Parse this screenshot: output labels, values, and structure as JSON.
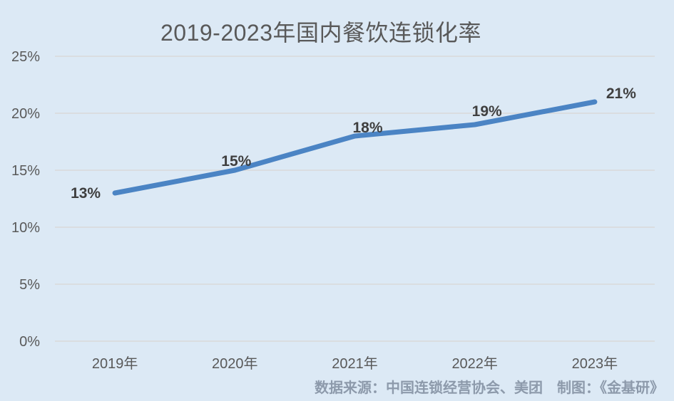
{
  "chart_data": {
    "type": "line",
    "title": "2019-2023年国内餐饮连锁化率",
    "categories": [
      "2019年",
      "2020年",
      "2021年",
      "2022年",
      "2023年"
    ],
    "values": [
      13,
      15,
      18,
      19,
      21
    ],
    "data_labels": [
      "13%",
      "15%",
      "18%",
      "19%",
      "21%"
    ],
    "y_ticks": [
      {
        "value": 0,
        "label": "0%"
      },
      {
        "value": 5,
        "label": "5%"
      },
      {
        "value": 10,
        "label": "10%"
      },
      {
        "value": 15,
        "label": "15%"
      },
      {
        "value": 20,
        "label": "20%"
      },
      {
        "value": 25,
        "label": "25%"
      }
    ],
    "ylim": [
      0,
      25
    ],
    "xlabel": "",
    "ylabel": "",
    "grid": true,
    "legend": "none",
    "colors": {
      "background": "#dce9f5",
      "line": "#4b84c4",
      "gridline": "#d9d9d9",
      "tick_text": "#595959",
      "title_text": "#595959",
      "data_label_text": "#3f3f3f",
      "source_text": "#8d9aab"
    }
  },
  "footer": {
    "source_note": "数据来源：中国连锁经营协会、美团　制图：《金基研》"
  }
}
